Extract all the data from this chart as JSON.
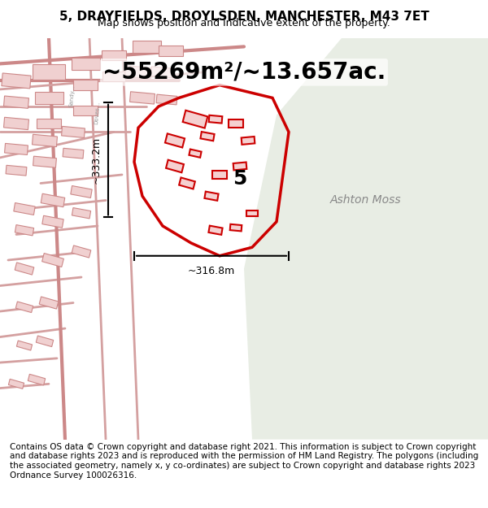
{
  "title": "5, DRAYFIELDS, DROYLSDEN, MANCHESTER, M43 7ET",
  "subtitle": "Map shows position and indicative extent of the property.",
  "area_text": "~55269m²/~13.657ac.",
  "width_label": "~316.8m",
  "height_label": "~333.2m",
  "label_number": "5",
  "place_label": "Ashton Moss",
  "footer_text": "Contains OS data © Crown copyright and database right 2021. This information is subject to Crown copyright and database rights 2023 and is reproduced with the permission of HM Land Registry. The polygons (including the associated geometry, namely x, y co-ordinates) are subject to Crown copyright and database rights 2023 Ordnance Survey 100026316.",
  "bg_map_color": "#f0ede8",
  "bg_open_color": "#e8ede8",
  "street_color": "#e8b8b8",
  "highlight_color": "#cc0000",
  "text_color": "#333333",
  "footer_bg": "#ffffff",
  "title_fontsize": 11,
  "subtitle_fontsize": 9,
  "area_fontsize": 20,
  "footer_fontsize": 7.5
}
